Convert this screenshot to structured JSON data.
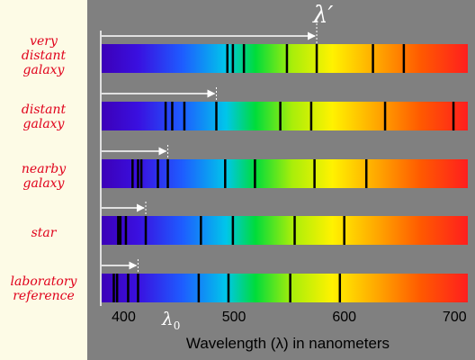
{
  "row_labels": {
    "very_distant": [
      "very",
      "distant",
      "galaxy"
    ],
    "distant": [
      "distant",
      "galaxy"
    ],
    "nearby": [
      "nearby",
      "galaxy"
    ],
    "star": [
      "star"
    ],
    "laboratory": [
      "laboratory",
      "reference"
    ]
  },
  "spectra": [
    {
      "id": "very-distant-galaxy",
      "marker_wavelength": 575,
      "lines": [
        494,
        499,
        509,
        548,
        575,
        626,
        654
      ]
    },
    {
      "id": "distant-galaxy",
      "marker_wavelength": 484,
      "lines": [
        438,
        444,
        455,
        484,
        542,
        570,
        637,
        699
      ]
    },
    {
      "id": "nearby-galaxy",
      "marker_wavelength": 440,
      "lines": [
        408,
        413,
        416,
        431,
        440,
        492,
        519,
        573,
        620
      ]
    },
    {
      "id": "star",
      "marker_wavelength": 420,
      "lines": [
        395,
        397,
        402,
        420,
        470,
        499,
        555,
        600
      ]
    },
    {
      "id": "laboratory-reference",
      "marker_wavelength": 413,
      "lines": [
        391,
        394,
        404,
        413,
        468,
        495,
        551,
        596
      ]
    }
  ],
  "axis": {
    "ticks": [
      "400",
      "500",
      "600",
      "700"
    ],
    "tick_values": [
      400,
      500,
      600,
      700
    ],
    "min": 380,
    "max": 712,
    "title": "Wavelength (λ) in nanometers"
  },
  "symbols": {
    "lambda_prime": "λ′",
    "lambda_zero": "λ",
    "lambda_zero_sub": "0"
  },
  "colors": {
    "left_panel": "#fdfbe6",
    "label_red": "#e0001b",
    "background": "#808080",
    "arrow": "#ffffff",
    "absorption_line": "#000000"
  }
}
